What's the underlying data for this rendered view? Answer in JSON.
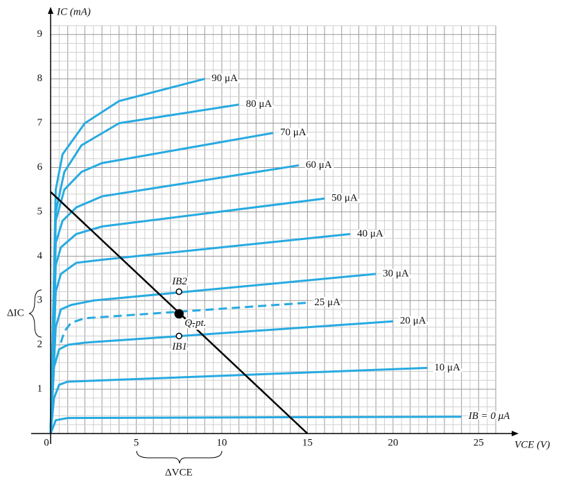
{
  "chart_data": {
    "type": "line",
    "ylabel": "IC (mA)",
    "xlabel": "VCE (V)",
    "xlim": [
      0,
      26
    ],
    "ylim": [
      0,
      9.2
    ],
    "xticks": [
      0,
      5,
      10,
      15,
      20,
      25
    ],
    "yticks": [
      1,
      2,
      3,
      4,
      5,
      6,
      7,
      8,
      9
    ],
    "grid": true,
    "xgrid": [
      0,
      0.5,
      1,
      1.5,
      2,
      2.5,
      3,
      3.5,
      4,
      4.5,
      5,
      5.5,
      6,
      6.5,
      7,
      7.5,
      8,
      8.5,
      9,
      9.5,
      10,
      10.5,
      11,
      11.5,
      12,
      12.5,
      13,
      13.5,
      14,
      14.5,
      15,
      15.5,
      16,
      16.5,
      17,
      17.5,
      18,
      18.5,
      19,
      19.5,
      20,
      20.5,
      21,
      21.5,
      22,
      22.5,
      23,
      23.5,
      24,
      24.5,
      25,
      25.5,
      26
    ],
    "ygrid": [
      0,
      0.2,
      0.4,
      0.6,
      0.8,
      1,
      1.2,
      1.4,
      1.6,
      1.8,
      2,
      2.2,
      2.4,
      2.6,
      2.8,
      3,
      3.2,
      3.4,
      3.6,
      3.8,
      4,
      4.2,
      4.4,
      4.6,
      4.8,
      5,
      5.2,
      5.4,
      5.6,
      5.8,
      6,
      6.2,
      6.4,
      6.6,
      6.8,
      7,
      7.2,
      7.4,
      7.6,
      7.8,
      8,
      8.2,
      8.4,
      8.6,
      8.8,
      9,
      9.2
    ],
    "series": [
      {
        "name": "IB = 0 μA",
        "color": "#27aae1",
        "x": [
          0,
          0.3,
          1,
          24
        ],
        "values": [
          0,
          0.3,
          0.35,
          0.38
        ]
      },
      {
        "name": "10 μA",
        "color": "#27aae1",
        "x": [
          0,
          0.2,
          0.5,
          1,
          22
        ],
        "values": [
          0,
          0.8,
          1.1,
          1.17,
          1.48
        ]
      },
      {
        "name": "20 μA",
        "color": "#27aae1",
        "x": [
          0,
          0.2,
          0.5,
          1,
          2,
          20
        ],
        "values": [
          0,
          1.5,
          1.9,
          2.0,
          2.05,
          2.53
        ]
      },
      {
        "name": "25 μA",
        "color": "#27aae1",
        "dashed": true,
        "x": [
          0.6,
          0.8,
          1.2,
          2,
          15
        ],
        "values": [
          2.05,
          2.3,
          2.5,
          2.6,
          2.95
        ]
      },
      {
        "name": "30 μA",
        "color": "#27aae1",
        "x": [
          0,
          0.3,
          0.6,
          1.2,
          2.5,
          19
        ],
        "values": [
          0,
          2.4,
          2.8,
          2.9,
          3.0,
          3.6
        ]
      },
      {
        "name": "40 μA",
        "color": "#27aae1",
        "x": [
          0,
          0.3,
          0.6,
          1.5,
          3,
          17.5
        ],
        "values": [
          0,
          3.2,
          3.6,
          3.85,
          3.92,
          4.5
        ]
      },
      {
        "name": "50 μA",
        "color": "#27aae1",
        "x": [
          0,
          0.3,
          0.6,
          1.5,
          3,
          16
        ],
        "values": [
          0,
          3.8,
          4.2,
          4.5,
          4.67,
          5.3
        ]
      },
      {
        "name": "60 μA",
        "color": "#27aae1",
        "x": [
          0,
          0.3,
          0.7,
          1.5,
          3,
          14.5
        ],
        "values": [
          0,
          4.3,
          4.8,
          5.1,
          5.35,
          6.05
        ]
      },
      {
        "name": "70 μA",
        "color": "#27aae1",
        "x": [
          0,
          0.3,
          0.8,
          1.8,
          3,
          13
        ],
        "values": [
          0,
          4.8,
          5.5,
          5.9,
          6.1,
          6.78
        ]
      },
      {
        "name": "80 μA",
        "color": "#27aae1",
        "x": [
          0,
          0.3,
          0.8,
          1.8,
          4,
          11
        ],
        "values": [
          0,
          5.0,
          5.9,
          6.5,
          7.0,
          7.42
        ]
      },
      {
        "name": "90 μA",
        "color": "#27aae1",
        "x": [
          0,
          0.3,
          0.7,
          2,
          4,
          9
        ],
        "values": [
          0,
          5.5,
          6.3,
          7.0,
          7.5,
          8.0
        ]
      }
    ],
    "load_line": {
      "color": "#000000",
      "x": [
        0,
        15
      ],
      "values": [
        5.45,
        0
      ]
    },
    "points": [
      {
        "label": "Q-pt.",
        "x": 7.5,
        "y": 2.7
      },
      {
        "label": "IB2",
        "x": 7.5,
        "y": 3.2
      },
      {
        "label": "IB1",
        "x": 7.5,
        "y": 2.2
      }
    ],
    "annotations": [
      "ΔIC",
      "ΔVCE"
    ]
  }
}
